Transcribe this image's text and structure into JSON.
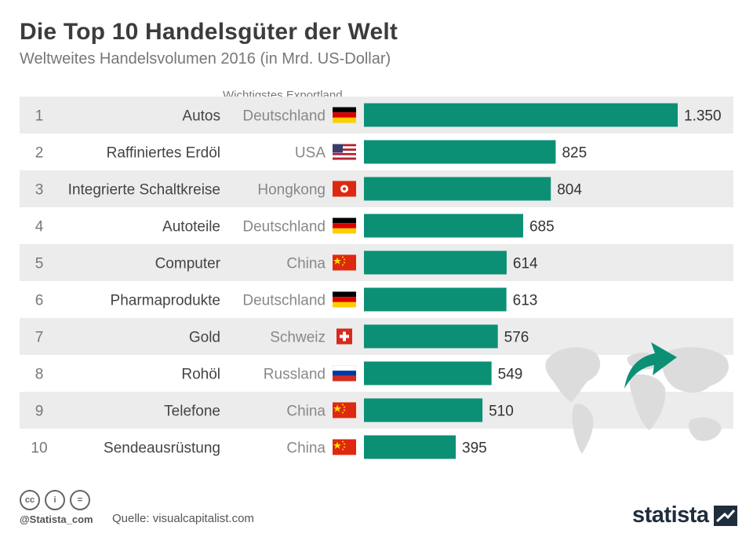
{
  "header": {
    "title": "Die Top 10 Handelsgüter der Welt",
    "subtitle": "Weltweites Handelsvolumen 2016 (in Mrd. US-Dollar)",
    "column_header": "Wichtigstes Exportland"
  },
  "chart_data": {
    "type": "bar",
    "orientation": "horizontal",
    "title": "Die Top 10 Handelsgüter der Welt",
    "subtitle": "Weltweites Handelsvolumen 2016 (in Mrd. US-Dollar)",
    "ranks": [
      "1",
      "2",
      "3",
      "4",
      "5",
      "6",
      "7",
      "8",
      "9",
      "10"
    ],
    "categories": [
      "Autos",
      "Raffiniertes Erdöl",
      "Integrierte Schaltkreise",
      "Autoteile",
      "Computer",
      "Pharmaprodukte",
      "Gold",
      "Rohöl",
      "Telefone",
      "Sendeausrüstung"
    ],
    "countries": [
      "Deutschland",
      "USA",
      "Hongkong",
      "Deutschland",
      "China",
      "Deutschland",
      "Schweiz",
      "Russland",
      "China",
      "China"
    ],
    "flags": [
      "flag-germany-icon",
      "flag-usa-icon",
      "flag-hongkong-icon",
      "flag-germany-icon",
      "flag-china-icon",
      "flag-germany-icon",
      "flag-switzerland-icon",
      "flag-russia-icon",
      "flag-china-icon",
      "flag-china-icon"
    ],
    "values": [
      1350,
      825,
      804,
      685,
      614,
      613,
      576,
      549,
      510,
      395
    ],
    "value_labels": [
      "1.350",
      "825",
      "804",
      "685",
      "614",
      "613",
      "576",
      "549",
      "510",
      "395"
    ],
    "xlim": [
      0,
      1350
    ],
    "bar_color": "#0b9075",
    "stripe_color": "#ececec"
  },
  "footer": {
    "license_icons": [
      "cc-icon",
      "by-icon",
      "nd-icon"
    ],
    "license_glyphs": [
      "cc",
      "i",
      "="
    ],
    "handle": "@Statista_com",
    "source": "Quelle: visualcapitalist.com",
    "brand": "statista"
  }
}
